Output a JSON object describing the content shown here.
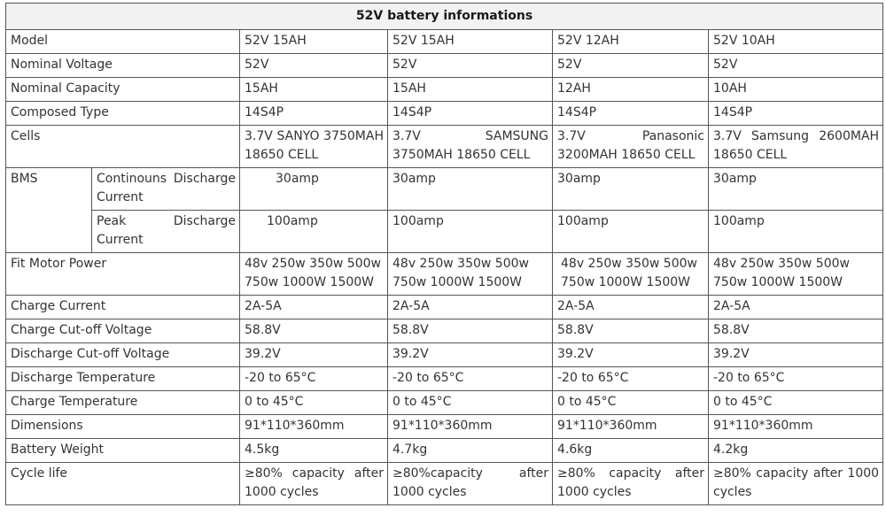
{
  "title": "52V battery informations",
  "rows": {
    "model": {
      "label": "Model",
      "values": [
        "52V 15AH",
        "52V 15AH",
        "52V 12AH",
        "52V 10AH"
      ]
    },
    "nominal_voltage": {
      "label": "Nominal Voltage",
      "values": [
        "52V",
        "52V",
        "52V",
        "52V"
      ]
    },
    "nominal_capacity": {
      "label": "Nominal Capacity",
      "values": [
        "15AH",
        "15AH",
        "12AH",
        "10AH"
      ]
    },
    "composed_type": {
      "label": "Composed Type",
      "values": [
        "14S4P",
        "14S4P",
        "14S4P",
        "14S4P"
      ]
    },
    "cells": {
      "label": "Cells",
      "values": [
        "3.7V SANYO 3750MAH 18650 CELL",
        "3.7V SAMSUNG 3750MAH 18650 CELL",
        "3.7V Panasonic 3200MAH 18650 CELL",
        "3.7V Samsung 2600MAH 18650 CELL"
      ]
    },
    "bms": {
      "label": "BMS",
      "continuous": {
        "label": "Continouns Discharge Current",
        "values": [
          "30amp",
          "30amp",
          "30amp",
          "30amp"
        ]
      },
      "peak": {
        "label": "Peak Discharge Current",
        "values": [
          "100amp",
          "100amp",
          "100amp",
          "100amp"
        ]
      }
    },
    "fit_motor_power": {
      "label": "Fit Motor Power",
      "values": [
        "48v 250w 350w 500w 750w 1000W 1500W",
        "48v 250w 350w 500w 750w 1000W 1500W",
        "48v 250w 350w 500w 750w 1000W 1500W",
        "48v 250w 350w 500w 750w 1000W 1500W"
      ]
    },
    "charge_current": {
      "label": "Charge Current",
      "values": [
        "2A-5A",
        "2A-5A",
        "2A-5A",
        "2A-5A"
      ]
    },
    "charge_cutoff": {
      "label": "Charge Cut-off Voltage",
      "values": [
        "58.8V",
        "58.8V",
        "58.8V",
        "58.8V"
      ]
    },
    "discharge_cutoff": {
      "label": "Discharge Cut-off Voltage",
      "values": [
        "39.2V",
        "39.2V",
        "39.2V",
        "39.2V"
      ]
    },
    "discharge_temp": {
      "label": "Discharge Temperature",
      "values": [
        "-20 to 65°C",
        "-20 to 65°C",
        "-20 to 65°C",
        "-20 to 65°C"
      ]
    },
    "charge_temp": {
      "label": "Charge Temperature",
      "values": [
        "0 to 45°C",
        "0 to 45°C",
        "0 to 45°C",
        "0 to 45°C"
      ]
    },
    "dimensions": {
      "label": "Dimensions",
      "values": [
        "91*110*360mm",
        "91*110*360mm",
        "91*110*360mm",
        "91*110*360mm"
      ]
    },
    "battery_weight": {
      "label": "Battery Weight",
      "values": [
        "4.5kg",
        "4.7kg",
        "4.6kg",
        "4.2kg"
      ]
    },
    "cycle_life": {
      "label": "Cycle life",
      "values": [
        "≥80% capacity after 1000 cycles",
        "≥80%capacity after 1000 cycles",
        "≥80% capacity after 1000 cycles",
        "≥80% capacity after 1000 cycles"
      ]
    }
  }
}
